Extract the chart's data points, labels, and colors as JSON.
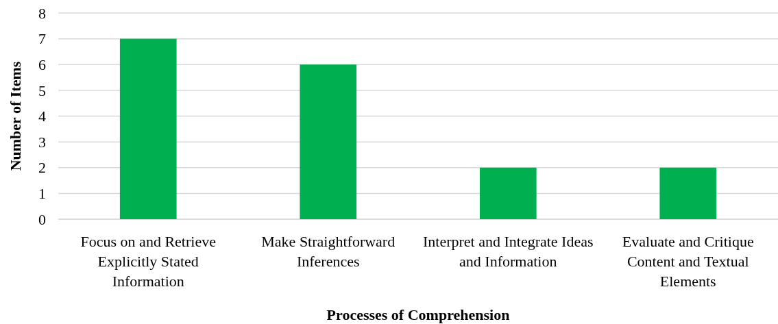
{
  "chart_data": {
    "type": "bar",
    "xlabel": "Processes of Comprehension",
    "ylabel": "Number of Items",
    "categories": [
      "Focus on and Retrieve Explicitly Stated Information",
      "Make Straightforward Inferences",
      "Interpret and Integrate Ideas and Information",
      "Evaluate and Critique Content and Textual Elements"
    ],
    "values": [
      7,
      6,
      2,
      2
    ],
    "color": "#00b050",
    "ylim": [
      0,
      8
    ],
    "yticks": [
      0,
      1,
      2,
      3,
      4,
      5,
      6,
      7,
      8
    ],
    "grid": "y"
  }
}
